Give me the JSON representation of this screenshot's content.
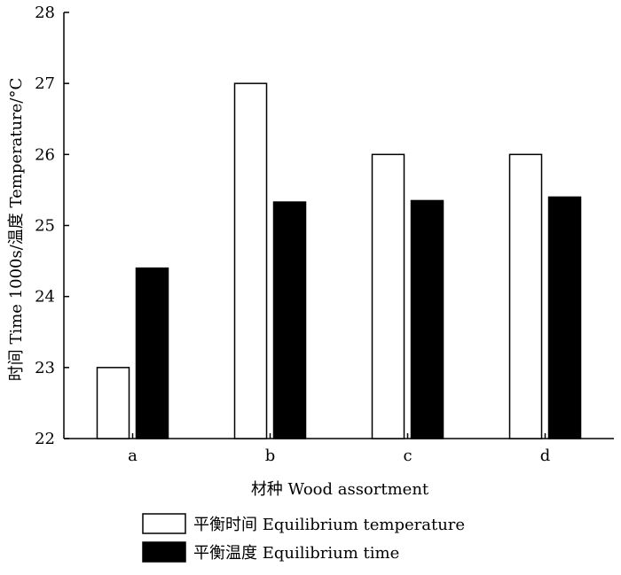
{
  "chart_data": {
    "type": "bar",
    "categories": [
      "a",
      "b",
      "c",
      "d"
    ],
    "series": [
      {
        "name": "平衡时间 Equilibrium temperature",
        "values": [
          23.0,
          27.0,
          26.0,
          26.0
        ],
        "color": "#ffffff"
      },
      {
        "name": "平衡温度 Equilibrium time",
        "values": [
          24.4,
          25.33,
          25.35,
          25.4
        ],
        "color": "#000000"
      }
    ],
    "xlabel": "材种 Wood assortment",
    "ylabel": "时间 Time 1000s/温度 Temperature/°C",
    "ylim": [
      22,
      28
    ],
    "yticks": [
      "22",
      "23",
      "24",
      "25",
      "26",
      "27",
      "28"
    ],
    "grid": false,
    "legend_position": "bottom"
  }
}
